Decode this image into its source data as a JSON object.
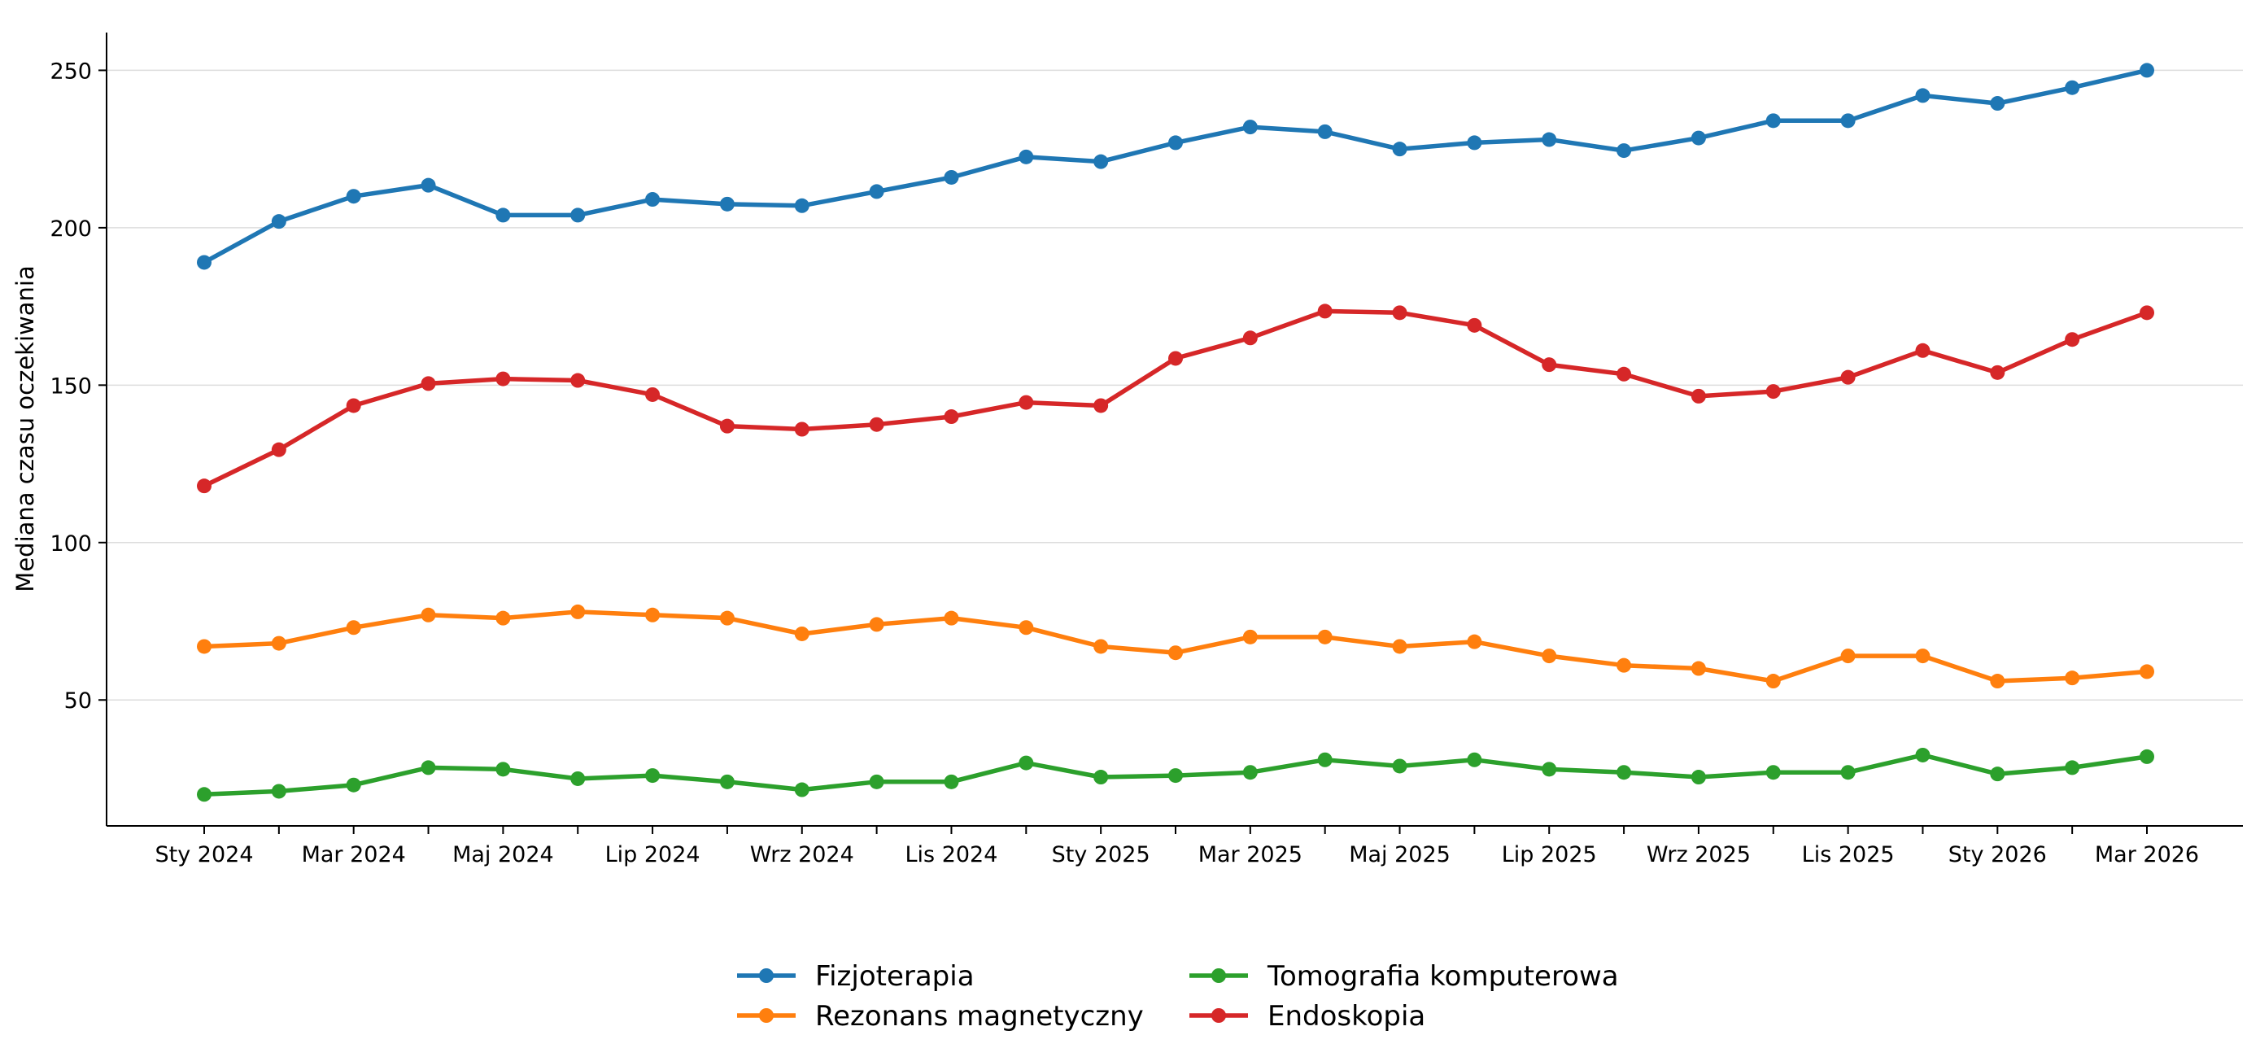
{
  "chart_data": {
    "type": "line",
    "title": "",
    "xlabel": "",
    "ylabel": "Mediana czasu oczekiwania",
    "ylim": [
      10,
      262
    ],
    "yticks": [
      50,
      100,
      150,
      200,
      250
    ],
    "grid": "horizontal",
    "legend_position": "bottom-center",
    "x": [
      "Sty 2024",
      "Lut 2024",
      "Mar 2024",
      "Kwi 2024",
      "Maj 2024",
      "Cze 2024",
      "Lip 2024",
      "Sie 2024",
      "Wrz 2024",
      "Paź 2024",
      "Lis 2024",
      "Gru 2024",
      "Sty 2025",
      "Lut 2025",
      "Mar 2025",
      "Kwi 2025",
      "Maj 2025",
      "Cze 2025",
      "Lip 2025",
      "Sie 2025",
      "Wrz 2025",
      "Paź 2025",
      "Lis 2025",
      "Gru 2025",
      "Sty 2026",
      "Lut 2026",
      "Mar 2026"
    ],
    "xtick_labels": [
      "Sty 2024",
      "",
      "Mar 2024",
      "",
      "Maj 2024",
      "",
      "Lip 2024",
      "",
      "Wrz 2024",
      "",
      "Lis 2024",
      "",
      "Sty 2025",
      "",
      "Mar 2025",
      "",
      "Maj 2025",
      "",
      "Lip 2025",
      "",
      "Wrz 2025",
      "",
      "Lis 2025",
      "",
      "Sty 2026",
      "",
      "Mar 2026"
    ],
    "series": [
      {
        "name": "Fizjoterapia",
        "color": "#1f77b4",
        "values": [
          189,
          202,
          210,
          213.5,
          204,
          204,
          209,
          207.5,
          207,
          211.5,
          216,
          222.5,
          221,
          227,
          232,
          230.5,
          225,
          227,
          228,
          224.5,
          228.5,
          234,
          234,
          242,
          239.5,
          244.5,
          250
        ]
      },
      {
        "name": "Rezonans magnetyczny",
        "color": "#ff7f0e",
        "values": [
          67,
          68,
          73,
          77,
          76,
          78,
          77,
          76,
          71,
          74,
          76,
          73,
          67,
          65,
          70,
          70,
          67,
          68.5,
          64,
          61,
          60,
          56,
          64,
          64,
          56,
          57,
          59
        ]
      },
      {
        "name": "Tomografia komputerowa",
        "color": "#2ca02c",
        "values": [
          20,
          21,
          23,
          28.5,
          28,
          25,
          26,
          24,
          21.5,
          24,
          24,
          30,
          25.5,
          26,
          27,
          31,
          29,
          31,
          28,
          27,
          25.5,
          27,
          27,
          32.5,
          26.5,
          28.5,
          32
        ]
      },
      {
        "name": "Endoskopia",
        "color": "#d62728",
        "values": [
          118,
          129.5,
          143.5,
          150.5,
          152,
          151.5,
          147,
          137,
          136,
          137.5,
          140,
          144.5,
          143.5,
          158.5,
          165,
          173.5,
          173,
          169,
          156.5,
          153.5,
          146.5,
          148,
          152.5,
          161,
          154,
          164.5,
          173
        ]
      }
    ]
  }
}
